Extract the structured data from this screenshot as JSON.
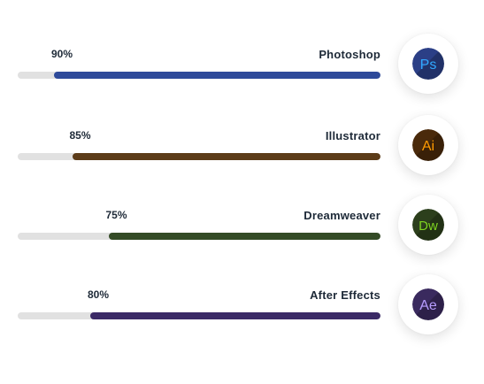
{
  "skills": [
    {
      "name": "Photoshop",
      "percent_label": "90%",
      "level": 0.9,
      "bar_color": "#2e4a9a",
      "icon": "photoshop-icon",
      "icon_text": "Ps",
      "icon_bg": "#2b3f86",
      "icon_text_color": "#31a8ff"
    },
    {
      "name": "Illustrator",
      "percent_label": "85%",
      "level": 0.85,
      "bar_color": "#5c3c19",
      "icon": "illustrator-icon",
      "icon_text": "Ai",
      "icon_bg": "#4a2a0b",
      "icon_text_color": "#ff9a00"
    },
    {
      "name": "Dreamweaver",
      "percent_label": "75%",
      "level": 0.75,
      "bar_color": "#344b26",
      "icon": "dreamweaver-icon",
      "icon_text": "Dw",
      "icon_bg": "#2c3f1c",
      "icon_text_color": "#7ed321"
    },
    {
      "name": "After Effects",
      "percent_label": "80%",
      "level": 0.8,
      "bar_color": "#3b2a66",
      "icon": "after-effects-icon",
      "icon_text": "Ae",
      "icon_bg": "#3a2a5e",
      "icon_text_color": "#b79dff"
    }
  ],
  "track_color": "#e1e1e1"
}
